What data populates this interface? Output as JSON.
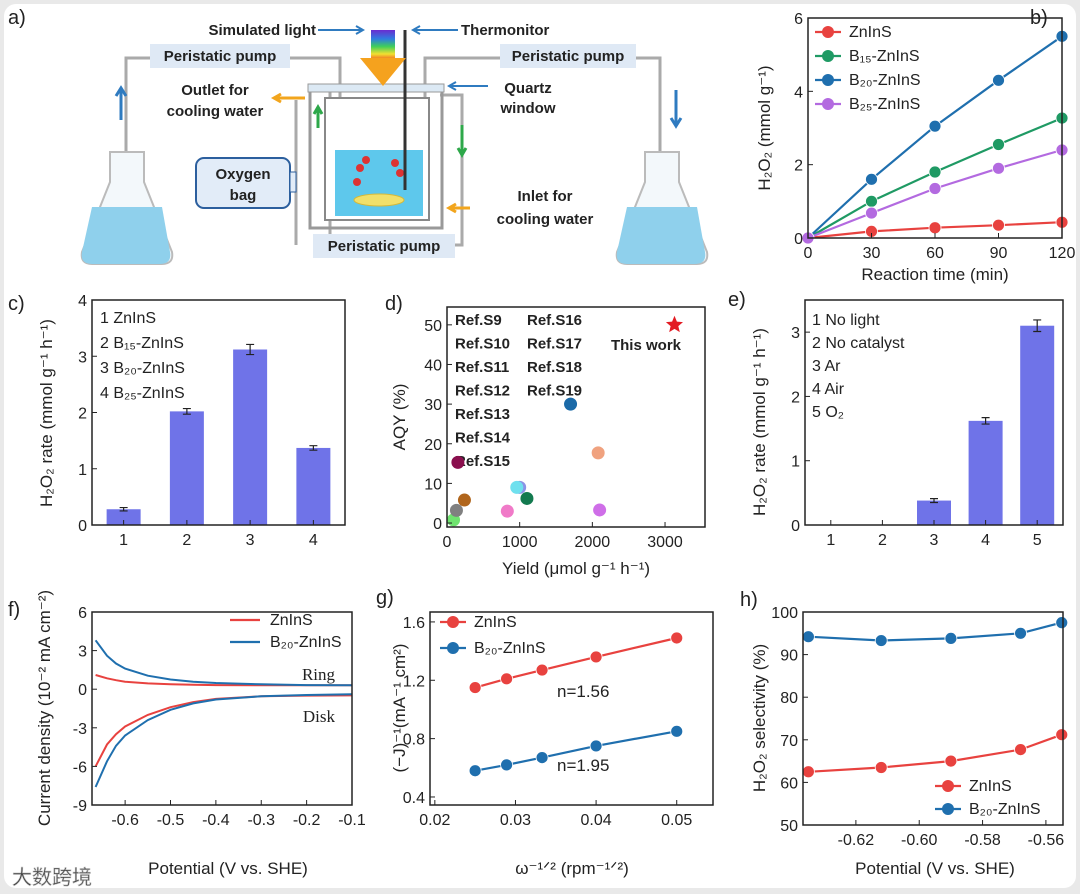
{
  "panel_letters": {
    "a": "a)",
    "b": "b)",
    "c": "c)",
    "d": "d)",
    "e": "e)",
    "f": "f)",
    "g": "g)",
    "h": "h)"
  },
  "diagram": {
    "simulated_light": "Simulated light",
    "thermonitor": "Thermonitor",
    "pump_left": "Peristatic pump",
    "pump_right": "Peristatic pump",
    "pump_bottom": "Peristatic pump",
    "outlet_1": "Outlet for",
    "outlet_2": "cooling water",
    "quartz_1": "Quartz",
    "quartz_2": "window",
    "oxygen_1": "Oxygen",
    "oxygen_2": "bag",
    "inlet_1": "Inlet for",
    "inlet_2": "cooling water"
  },
  "watermark": "大数跨境",
  "colors": {
    "red": "#e8423f",
    "green": "#1f9a64",
    "blue": "#1f6fae",
    "violet": "#b36ae0",
    "bar": "#6f73e8",
    "star": "#e31b23"
  },
  "chart_data": [
    {
      "id": "b",
      "type": "line",
      "xlabel": "Reaction time (min)",
      "ylabel": "H₂O₂ (mmol g⁻¹)",
      "xlim": [
        0,
        120
      ],
      "ylim": [
        0,
        6
      ],
      "xticks": [
        0,
        30,
        60,
        90,
        120
      ],
      "yticks": [
        0,
        2,
        4,
        6
      ],
      "series": [
        {
          "name": "ZnInS",
          "color": "#e8423f",
          "x": [
            0,
            30,
            60,
            90,
            120
          ],
          "y": [
            0,
            0.18,
            0.28,
            0.35,
            0.43
          ]
        },
        {
          "name": "B₁₅-ZnInS",
          "color": "#1f9a64",
          "x": [
            0,
            30,
            60,
            90,
            120
          ],
          "y": [
            0,
            1.0,
            1.8,
            2.55,
            3.27
          ]
        },
        {
          "name": "B₂₀-ZnInS",
          "color": "#1f6fae",
          "x": [
            0,
            30,
            60,
            90,
            120
          ],
          "y": [
            0,
            1.6,
            3.05,
            4.3,
            5.5
          ]
        },
        {
          "name": "B₂₅-ZnInS",
          "color": "#b36ae0",
          "x": [
            0,
            30,
            60,
            90,
            120
          ],
          "y": [
            0,
            0.68,
            1.35,
            1.9,
            2.4
          ]
        }
      ],
      "legend": "top-left"
    },
    {
      "id": "c",
      "type": "bar",
      "xlabel": "",
      "ylabel": "H₂O₂ rate (mmol g⁻¹ h⁻¹)",
      "xlim": [
        0.5,
        4.5
      ],
      "ylim": [
        0,
        4
      ],
      "xticks": [
        1,
        2,
        3,
        4
      ],
      "yticks": [
        0,
        1,
        2,
        3,
        4
      ],
      "categories": [
        1,
        2,
        3,
        4
      ],
      "values": [
        0.28,
        2.02,
        3.12,
        1.37
      ],
      "errors": [
        0.03,
        0.05,
        0.09,
        0.04
      ],
      "annotations": [
        "1 ZnInS",
        "2 B₁₅-ZnInS",
        "3 B₂₀-ZnInS",
        "4 B₂₅-ZnInS"
      ]
    },
    {
      "id": "d",
      "type": "scatter",
      "xlabel": "Yield (μmol g⁻¹ h⁻¹)",
      "ylabel": "AQY (%)",
      "xlim": [
        0,
        3550
      ],
      "ylim": [
        -1,
        54.5
      ],
      "xticks": [
        0,
        1000,
        2000,
        3000
      ],
      "yticks": [
        0,
        10,
        20,
        30,
        40,
        50
      ],
      "points": [
        {
          "name": "Ref.S9",
          "color": "#cf6ee8",
          "x": 2100,
          "y": 3.3
        },
        {
          "name": "Ref.S10",
          "color": "#8b93e6",
          "x": 1000,
          "y": 9
        },
        {
          "name": "Ref.S11",
          "color": "#6fe0ee",
          "x": 960,
          "y": 9
        },
        {
          "name": "Ref.S12",
          "color": "#6fe36f",
          "x": 90,
          "y": 0.8
        },
        {
          "name": "Ref.S13",
          "color": "#f0a27f",
          "x": 2080,
          "y": 17.7
        },
        {
          "name": "Ref.S14",
          "color": "#b0651c",
          "x": 240,
          "y": 5.8
        },
        {
          "name": "Ref.S15",
          "color": "#f07ac8",
          "x": 830,
          "y": 3
        },
        {
          "name": "Ref.S16",
          "color": "#1b6aa8",
          "x": 1700,
          "y": 30
        },
        {
          "name": "Ref.S17",
          "color": "#137a4f",
          "x": 1100,
          "y": 6.2
        },
        {
          "name": "Ref.S18",
          "color": "#808080",
          "x": 130,
          "y": 3.2
        },
        {
          "name": "Ref.S19",
          "color": "#8a0f4e",
          "x": 150,
          "y": 15.3
        },
        {
          "name": "This work",
          "color": "#e31b23",
          "x": 3130,
          "y": 50,
          "marker": "star"
        }
      ]
    },
    {
      "id": "e",
      "type": "bar",
      "xlabel": "",
      "ylabel": "H₂O₂ rate (mmol g⁻¹ h⁻¹)",
      "xlim": [
        0.5,
        5.5
      ],
      "ylim": [
        0,
        3.5
      ],
      "xticks": [
        1,
        2,
        3,
        4,
        5
      ],
      "yticks": [
        0,
        1,
        2,
        3
      ],
      "categories": [
        1,
        2,
        3,
        4,
        5
      ],
      "values": [
        0,
        0,
        0.38,
        1.62,
        3.1
      ],
      "errors": [
        0,
        0,
        0.03,
        0.05,
        0.09
      ],
      "annotations": [
        "1 No light",
        "2 No catalyst",
        "3 Ar",
        "4 Air",
        "5 O₂"
      ]
    },
    {
      "id": "f",
      "type": "line",
      "xlabel": "Potential (V vs. SHE)",
      "ylabel": "Current density (10⁻² mA cm⁻²)",
      "xlim": [
        -0.673,
        -0.1
      ],
      "ylim": [
        -9,
        6
      ],
      "xticks": [
        -0.6,
        -0.5,
        -0.4,
        -0.3,
        -0.2,
        -0.1
      ],
      "yticks": [
        -9,
        -6,
        -3,
        0,
        3,
        6
      ],
      "series": [
        {
          "name": "ZnInS",
          "color": "#e8423f",
          "x": [
            -0.665,
            -0.64,
            -0.62,
            -0.6,
            -0.55,
            -0.5,
            -0.45,
            -0.4,
            -0.3,
            -0.2,
            -0.1
          ],
          "y": [
            1.1,
            0.85,
            0.7,
            0.58,
            0.45,
            0.38,
            0.34,
            0.32,
            0.3,
            0.3,
            0.3
          ]
        },
        {
          "name": "B₂₀-ZnInS",
          "color": "#1f6fae",
          "x": [
            -0.665,
            -0.64,
            -0.62,
            -0.6,
            -0.55,
            -0.5,
            -0.45,
            -0.4,
            -0.3,
            -0.2,
            -0.1
          ],
          "y": [
            3.8,
            2.6,
            2.0,
            1.6,
            1.05,
            0.75,
            0.58,
            0.48,
            0.38,
            0.32,
            0.3
          ]
        },
        {
          "name": "ZnInS disk",
          "legend": false,
          "color": "#e8423f",
          "x": [
            -0.665,
            -0.64,
            -0.62,
            -0.6,
            -0.55,
            -0.5,
            -0.45,
            -0.4,
            -0.3,
            -0.2,
            -0.1
          ],
          "y": [
            -6.0,
            -4.3,
            -3.5,
            -2.9,
            -2.0,
            -1.4,
            -1.0,
            -0.75,
            -0.55,
            -0.5,
            -0.48
          ]
        },
        {
          "name": "B₂₀-ZnInS disk",
          "legend": false,
          "color": "#1f6fae",
          "x": [
            -0.665,
            -0.64,
            -0.62,
            -0.6,
            -0.55,
            -0.5,
            -0.45,
            -0.4,
            -0.3,
            -0.2,
            -0.1
          ],
          "y": [
            -7.6,
            -5.6,
            -4.4,
            -3.6,
            -2.4,
            -1.6,
            -1.1,
            -0.8,
            -0.55,
            -0.45,
            -0.4
          ]
        }
      ],
      "annotations": [
        "Ring",
        "Disk"
      ],
      "legend": "top-right"
    },
    {
      "id": "g",
      "type": "line",
      "xlabel": "ω⁻¹ᐟ² (rpm⁻¹ᐟ²)",
      "ylabel": "(−J)⁻¹(mA⁻¹ cm²)",
      "xlim": [
        0.0194,
        0.0545
      ],
      "ylim": [
        0.345,
        1.668
      ],
      "xticks": [
        0.02,
        0.03,
        0.04,
        0.05
      ],
      "yticks": [
        0.4,
        0.8,
        1.2,
        1.6
      ],
      "series": [
        {
          "name": "ZnInS",
          "color": "#e8423f",
          "x": [
            0.025,
            0.0289,
            0.0333,
            0.04,
            0.05
          ],
          "y": [
            1.15,
            1.21,
            1.27,
            1.36,
            1.49
          ]
        },
        {
          "name": "B₂₀-ZnInS",
          "color": "#1f6fae",
          "x": [
            0.025,
            0.0289,
            0.0333,
            0.04,
            0.05
          ],
          "y": [
            0.58,
            0.62,
            0.67,
            0.75,
            0.85
          ]
        }
      ],
      "annotations": [
        "n=1.56",
        "n=1.95"
      ],
      "legend": "top-left"
    },
    {
      "id": "h",
      "type": "line",
      "xlabel": "Potential (V vs. SHE)",
      "ylabel": "H₂O₂ selectivity (%)",
      "xlim": [
        -0.6367,
        -0.5546
      ],
      "ylim": [
        50,
        100
      ],
      "xticks": [
        -0.62,
        -0.6,
        -0.58,
        -0.56
      ],
      "yticks": [
        50,
        60,
        70,
        80,
        90,
        100
      ],
      "series": [
        {
          "name": "ZnInS",
          "color": "#e8423f",
          "x": [
            -0.635,
            -0.612,
            -0.59,
            -0.568,
            -0.555
          ],
          "y": [
            62.5,
            63.5,
            65,
            67.7,
            71.2
          ]
        },
        {
          "name": "B₂₀-ZnInS",
          "color": "#1f6fae",
          "x": [
            -0.635,
            -0.612,
            -0.59,
            -0.568,
            -0.555
          ],
          "y": [
            94.2,
            93.3,
            93.8,
            95,
            97.5
          ]
        }
      ],
      "legend": "bottom-right"
    }
  ]
}
